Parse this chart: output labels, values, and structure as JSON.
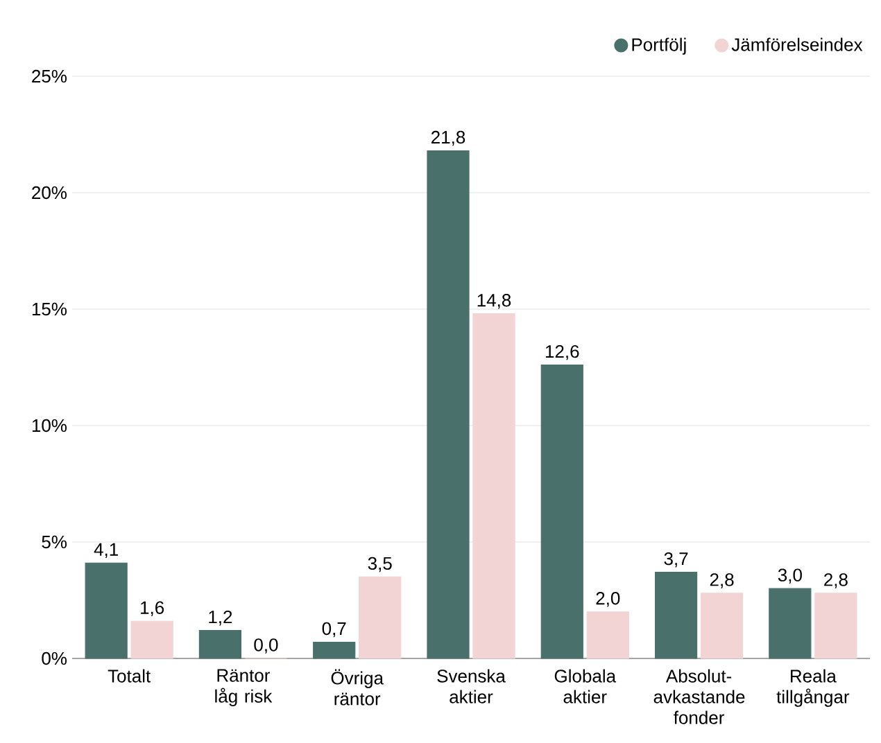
{
  "chart_data": {
    "type": "bar",
    "categories": [
      "Totalt",
      "Räntor låg risk",
      "Övriga räntor",
      "Svenska aktier",
      "Globala aktier",
      "Absolut-avkastande fonder",
      "Reala tillgångar"
    ],
    "series": [
      {
        "name": "Portfölj",
        "color": "#4a706c",
        "values": [
          4.1,
          1.2,
          0.7,
          21.8,
          12.6,
          3.7,
          3.0
        ],
        "value_labels": [
          "4,1",
          "1,2",
          "0,7",
          "21,8",
          "12,6",
          "3,7",
          "3,0"
        ]
      },
      {
        "name": "Jämförelseindex",
        "color": "#f2d4d4",
        "values": [
          1.6,
          0.0,
          3.5,
          14.8,
          2.0,
          2.8,
          2.8
        ],
        "value_labels": [
          "1,6",
          "0,0",
          "3,5",
          "14,8",
          "2,0",
          "2,8",
          "2,8"
        ]
      }
    ],
    "ylim": [
      0,
      25
    ],
    "yticks": [
      {
        "value": 0,
        "label": "0%"
      },
      {
        "value": 5,
        "label": "5%"
      },
      {
        "value": 10,
        "label": "10%"
      },
      {
        "value": 15,
        "label": "15%"
      },
      {
        "value": 20,
        "label": "20%"
      },
      {
        "value": 25,
        "label": "25%"
      }
    ],
    "grid": "y",
    "legend": "top right"
  }
}
